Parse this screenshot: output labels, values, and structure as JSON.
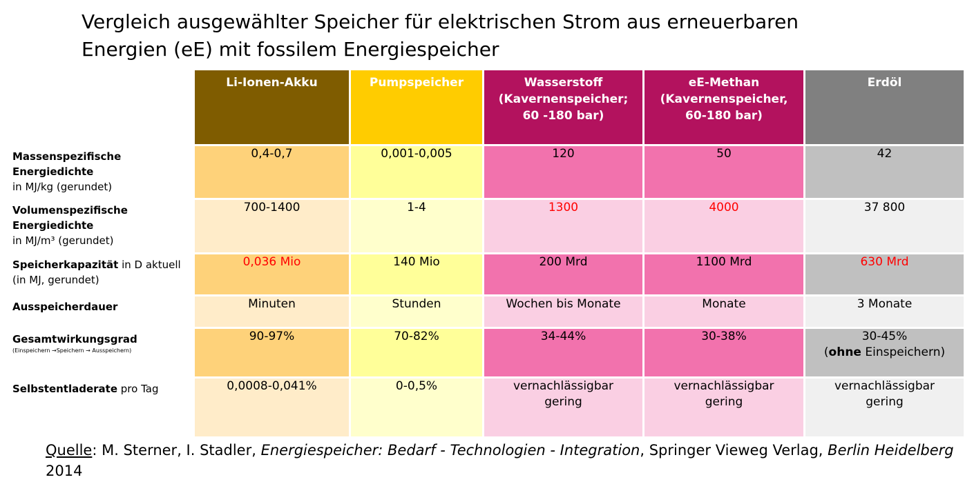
{
  "title": {
    "line1": "Vergleich ausgewählter Speicher für elektrischen Strom aus erneuerbaren",
    "line2": "Energien (eE) mit fossilem Energiespeicher"
  },
  "colors": {
    "liion_head": "#7f5c00",
    "liion_dark": "#fed27a",
    "liion_light": "#ffecc9",
    "pump_head": "#ffcc00",
    "pump_dark": "#ffff99",
    "pump_light": "#ffffcc",
    "h2_head": "#b3125e",
    "h2_dark": "#f272ad",
    "h2_light": "#facfe3",
    "ch4_head": "#b3125e",
    "ch4_dark": "#f272ad",
    "ch4_light": "#facfe3",
    "oil_head": "#808080",
    "oil_dark": "#c0c0c0",
    "oil_light": "#f0f0f0",
    "highlight": "#ff0000"
  },
  "columns": [
    {
      "lines": [
        "Li-Ionen-Akku"
      ]
    },
    {
      "lines": [
        "Pumpspeicher"
      ]
    },
    {
      "lines": [
        "Wasserstoff",
        "(Kavernenspeicher;",
        "60 -180 bar)"
      ]
    },
    {
      "lines": [
        "eE-Methan",
        "(Kavernenspeicher,",
        "60-180 bar)"
      ]
    },
    {
      "lines": [
        "Erdöl"
      ]
    }
  ],
  "rows": [
    {
      "label_bold": "Massenspezifische Energiedichte",
      "label_rest": "in MJ/kg (gerundet)",
      "cells": [
        "0,4-0,7",
        "0,001-0,005",
        "120",
        "50",
        "42"
      ],
      "red": [
        false,
        false,
        false,
        false,
        false
      ]
    },
    {
      "label_bold": "Volumenspezifische Energiedichte",
      "label_rest": "in MJ/m³ (gerundet)",
      "cells": [
        "700-1400",
        "1-4",
        "1300",
        "4000",
        "37 800"
      ],
      "red": [
        false,
        false,
        true,
        true,
        false
      ]
    },
    {
      "label_bold": "Speicherkapazität",
      "label_rest": " in D aktuell (in MJ,  gerundet)",
      "cells": [
        "0,036 Mio",
        "140 Mio",
        "200 Mrd",
        "1100 Mrd",
        "630 Mrd"
      ],
      "red": [
        true,
        false,
        false,
        false,
        true
      ]
    },
    {
      "label_bold": "Ausspeicherdauer",
      "label_rest": "",
      "cells": [
        "Minuten",
        "Stunden",
        "Wochen bis Monate",
        "Monate",
        "3 Monate"
      ],
      "red": [
        false,
        false,
        false,
        false,
        false
      ]
    },
    {
      "label_bold": "Gesamtwirkungsgrad",
      "label_small": "(Einspeichern →Speichern → Ausspeichern)",
      "cells": [
        "90-97%",
        "70-82%",
        "34-44%",
        "30-38%",
        "30-45%"
      ],
      "oil_extra_bold": "ohne",
      "oil_extra_rest": " Einspeichern)",
      "oil_extra_open": "(",
      "red": [
        false,
        false,
        false,
        false,
        false
      ]
    },
    {
      "label_bold": "Selbstentladerate",
      "label_rest": "  pro Tag",
      "cells": [
        "0,0008-0,041%",
        "0-0,5%",
        "vernachlässigbar gering",
        "vernachlässigbar gering",
        "vernachlässigbar gering"
      ],
      "red": [
        false,
        false,
        false,
        false,
        false
      ]
    }
  ],
  "source": {
    "label": "Quelle",
    "sep": ": M. Sterner, I. Stadler, ",
    "book": "Energiespeicher: Bedarf - Technologien - Integration",
    "publisher": ", Springer Vieweg Verlag, ",
    "place": "Berlin Heidelberg",
    "year": " 2014"
  }
}
